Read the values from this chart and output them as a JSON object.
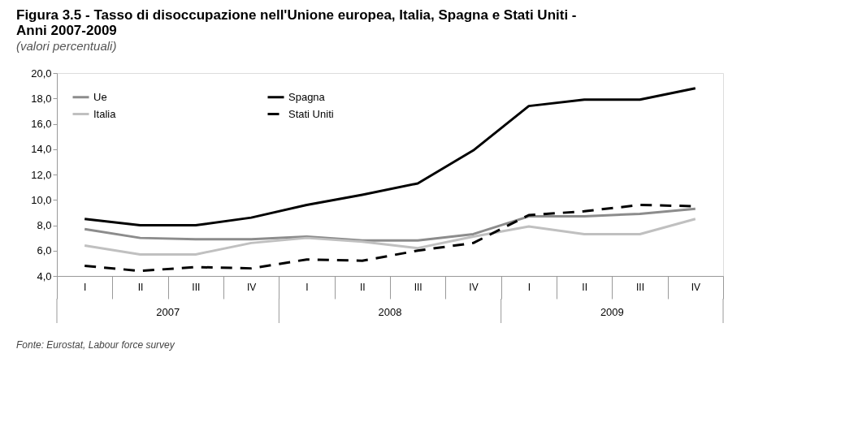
{
  "chart_data": {
    "type": "line",
    "title": "Figura 3.5 - Tasso di disoccupazione nell'Unione europea, Italia, Spagna e Stati Uniti - Anni 2007-2009",
    "subtitle": "(valori percentuali)",
    "categories": [
      "I",
      "II",
      "III",
      "IV",
      "I",
      "II",
      "III",
      "IV",
      "I",
      "II",
      "III",
      "IV"
    ],
    "series": [
      {
        "name": "Ue",
        "color": "#8c8c8c",
        "line_style": "solid",
        "values": [
          7.7,
          7.0,
          6.9,
          6.9,
          7.1,
          6.8,
          6.8,
          7.3,
          8.7,
          8.7,
          8.9,
          9.3
        ]
      },
      {
        "name": "Italia",
        "color": "#c0c0c0",
        "line_style": "solid",
        "values": [
          6.4,
          5.7,
          5.7,
          6.6,
          7.0,
          6.7,
          6.2,
          7.1,
          7.9,
          7.3,
          7.3,
          8.5
        ]
      },
      {
        "name": "Spagna",
        "color": "#000000",
        "line_style": "solid",
        "values": [
          8.5,
          8.0,
          8.0,
          8.6,
          9.6,
          10.4,
          11.3,
          13.9,
          17.4,
          17.9,
          17.9,
          18.8
        ]
      },
      {
        "name": "Stati Uniti",
        "color": "#000000",
        "line_style": "dashed",
        "values": [
          4.8,
          4.4,
          4.7,
          4.6,
          5.3,
          5.2,
          6.0,
          6.6,
          8.8,
          9.1,
          9.6,
          9.5
        ]
      }
    ],
    "ylim": [
      4,
      20
    ],
    "yticks": [
      {
        "value": 4,
        "label": "4,0"
      },
      {
        "value": 6,
        "label": "6,0"
      },
      {
        "value": 8,
        "label": "8,0"
      },
      {
        "value": 10,
        "label": "10,0"
      },
      {
        "value": 12,
        "label": "12,0"
      },
      {
        "value": 14,
        "label": "14,0"
      },
      {
        "value": 16,
        "label": "16,0"
      },
      {
        "value": 18,
        "label": "18,0"
      },
      {
        "value": 20,
        "label": "20,0"
      }
    ],
    "grid": false,
    "legend": "top left",
    "annotations": [
      "2007",
      "2008",
      "2009",
      "Fonte: Eurostat, Labour force survey"
    ]
  }
}
